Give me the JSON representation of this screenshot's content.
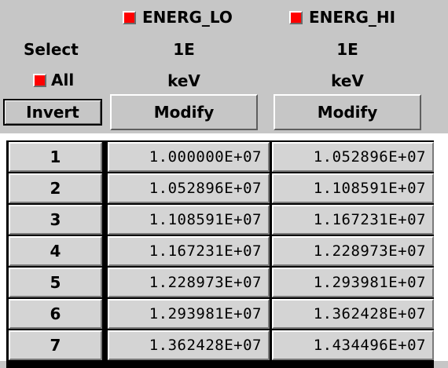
{
  "columns": [
    {
      "name": "ENERG_LO",
      "selected": true,
      "base": "1E",
      "unit": "keV",
      "modify_label": "Modify"
    },
    {
      "name": "ENERG_HI",
      "selected": true,
      "base": "1E",
      "unit": "keV",
      "modify_label": "Modify"
    }
  ],
  "controls": {
    "select_label": "Select",
    "all_label": "All",
    "all_selected": true,
    "invert_label": "Invert"
  },
  "colors": {
    "checkbox_on": "#ff0000",
    "background": "#c6c6c6",
    "cell": "#d4d4d4"
  },
  "rows": [
    {
      "index": "1",
      "energ_lo": "1.000000E+07",
      "energ_hi": "1.052896E+07"
    },
    {
      "index": "2",
      "energ_lo": "1.052896E+07",
      "energ_hi": "1.108591E+07"
    },
    {
      "index": "3",
      "energ_lo": "1.108591E+07",
      "energ_hi": "1.167231E+07"
    },
    {
      "index": "4",
      "energ_lo": "1.167231E+07",
      "energ_hi": "1.228973E+07"
    },
    {
      "index": "5",
      "energ_lo": "1.228973E+07",
      "energ_hi": "1.293981E+07"
    },
    {
      "index": "6",
      "energ_lo": "1.293981E+07",
      "energ_hi": "1.362428E+07"
    },
    {
      "index": "7",
      "energ_lo": "1.362428E+07",
      "energ_hi": "1.434496E+07"
    }
  ]
}
